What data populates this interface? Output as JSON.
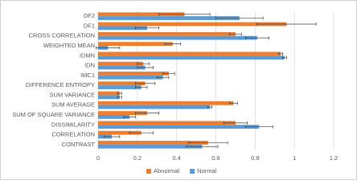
{
  "chart_data": {
    "type": "bar",
    "orientation": "horizontal",
    "categories": [
      "CONTRAST",
      "CORRELATION",
      "DISSIMILARITY",
      "SUM OF SQUARE VARIANCE",
      "SUM AVERAGE",
      "SUM VARIANCE",
      "DIFFERENCE ENTROPY",
      "IMC1",
      "IDN",
      "IDMN",
      "WEIGHTED MEAN",
      "CROSS CORRELATION",
      "DF1",
      "DF2"
    ],
    "series": [
      {
        "name": "Abnormal",
        "color": "#ed7d31",
        "values": [
          0.56,
          0.22,
          0.7,
          0.25,
          0.69,
          0.11,
          0.24,
          0.36,
          0.23,
          0.93,
          0.38,
          0.7,
          0.96,
          0.44
        ],
        "errors": [
          0.1,
          0.06,
          0.06,
          0.06,
          0.02,
          0.01,
          0.05,
          0.03,
          0.03,
          0.01,
          0.04,
          0.03,
          0.15,
          0.13
        ]
      },
      {
        "name": "Normal",
        "color": "#5b9bd5",
        "values": [
          0.53,
          0.07,
          0.82,
          0.16,
          0.57,
          0.11,
          0.22,
          0.33,
          0.24,
          0.95,
          0.05,
          0.81,
          0.25,
          0.72
        ],
        "errors": [
          0.08,
          0.04,
          0.07,
          0.03,
          0.01,
          0.01,
          0.03,
          0.03,
          0.04,
          0.01,
          0.06,
          0.06,
          0.06,
          0.12
        ]
      }
    ],
    "xlim": [
      0,
      1.2
    ],
    "xticks": [
      0,
      0.2,
      0.4,
      0.6,
      0.8,
      1,
      1.2
    ],
    "grid": true,
    "legend": "bottom"
  }
}
